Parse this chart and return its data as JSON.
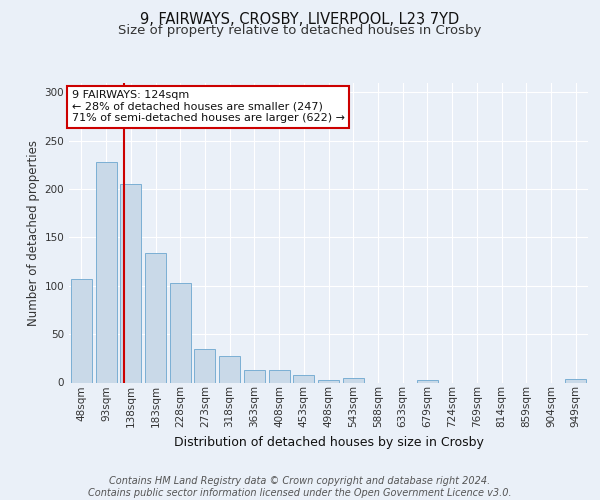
{
  "title1": "9, FAIRWAYS, CROSBY, LIVERPOOL, L23 7YD",
  "title2": "Size of property relative to detached houses in Crosby",
  "xlabel": "Distribution of detached houses by size in Crosby",
  "ylabel": "Number of detached properties",
  "categories": [
    "48sqm",
    "93sqm",
    "138sqm",
    "183sqm",
    "228sqm",
    "273sqm",
    "318sqm",
    "363sqm",
    "408sqm",
    "453sqm",
    "498sqm",
    "543sqm",
    "588sqm",
    "633sqm",
    "679sqm",
    "724sqm",
    "769sqm",
    "814sqm",
    "859sqm",
    "904sqm",
    "949sqm"
  ],
  "values": [
    107,
    228,
    205,
    134,
    103,
    35,
    27,
    13,
    13,
    8,
    3,
    5,
    0,
    0,
    3,
    0,
    0,
    0,
    0,
    0,
    4
  ],
  "bar_color": "#c9d9e8",
  "bar_edge_color": "#7bafd4",
  "red_line_x": 1.72,
  "annotation_text": "9 FAIRWAYS: 124sqm\n← 28% of detached houses are smaller (247)\n71% of semi-detached houses are larger (622) →",
  "annotation_box_edge_color": "#cc0000",
  "annotation_box_face_color": "#ffffff",
  "ylim": [
    0,
    310
  ],
  "yticks": [
    0,
    50,
    100,
    150,
    200,
    250,
    300
  ],
  "background_color": "#eaf0f8",
  "plot_bg_color": "#eaf0f8",
  "grid_color": "#ffffff",
  "footer_text": "Contains HM Land Registry data © Crown copyright and database right 2024.\nContains public sector information licensed under the Open Government Licence v3.0.",
  "title1_fontsize": 10.5,
  "title2_fontsize": 9.5,
  "xlabel_fontsize": 9,
  "ylabel_fontsize": 8.5,
  "tick_fontsize": 7.5,
  "annotation_fontsize": 8,
  "footer_fontsize": 7
}
